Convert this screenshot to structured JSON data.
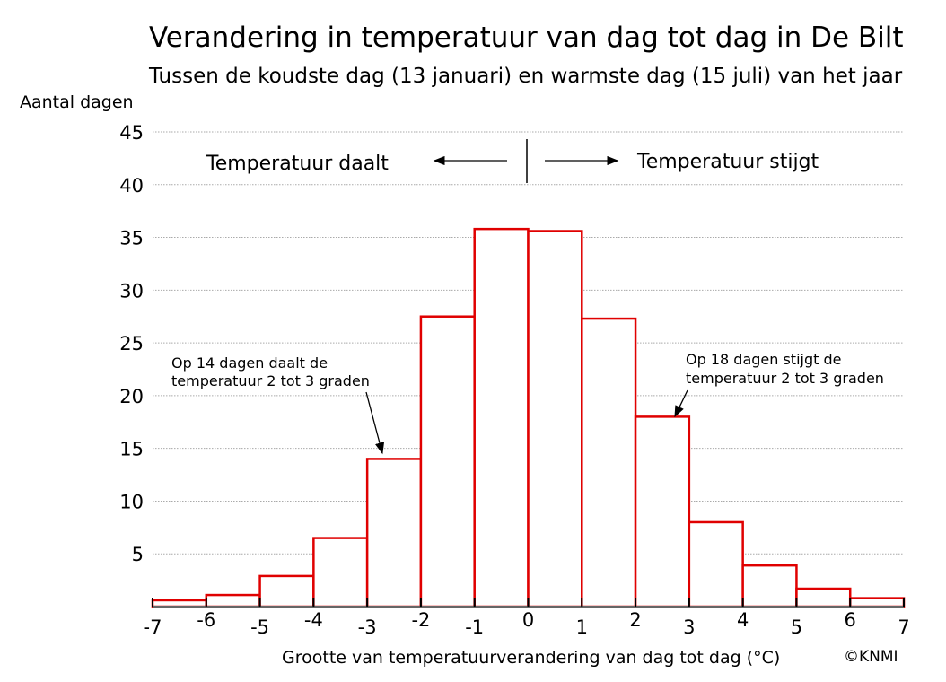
{
  "chart_data": {
    "type": "bar",
    "title": "Verandering in temperatuur van dag tot dag in De Bilt",
    "subtitle": "Tussen de koudste dag (13 januari) en warmste dag (15 juli) van het jaar",
    "xlabel": "Grootte van temperatuurverandering van dag tot dag (°C)",
    "ylabel": "Aantal dagen",
    "credit": "©KNMI",
    "bin_edges": [
      -7,
      -6,
      -5,
      -4,
      -3,
      -2,
      -1,
      0,
      1,
      2,
      3,
      4,
      5,
      6,
      7
    ],
    "values": [
      0.6,
      1.1,
      2.9,
      6.5,
      14,
      27.5,
      35.8,
      35.6,
      27.3,
      18,
      8,
      3.9,
      1.7,
      0.8
    ],
    "xlim": [
      -7,
      7
    ],
    "ylim": [
      0,
      45
    ],
    "x_ticks": [
      "-7",
      "-6",
      "-5",
      "-4",
      "-3",
      "-2",
      "-1",
      "0",
      "1",
      "2",
      "3",
      "4",
      "5",
      "6",
      "7"
    ],
    "y_ticks": [
      "5",
      "10",
      "15",
      "20",
      "25",
      "30",
      "35",
      "40",
      "45"
    ],
    "grid": true,
    "bar_color": "#e00000",
    "annotations": {
      "left_direction": "Temperatuur daalt",
      "right_direction": "Temperatuur stijgt",
      "left_note_line1": "Op 14 dagen daalt de",
      "left_note_line2": "temperatuur 2 tot 3 graden",
      "right_note_line1": "Op 18 dagen stijgt de",
      "right_note_line2": "temperatuur 2 tot 3 graden"
    }
  }
}
